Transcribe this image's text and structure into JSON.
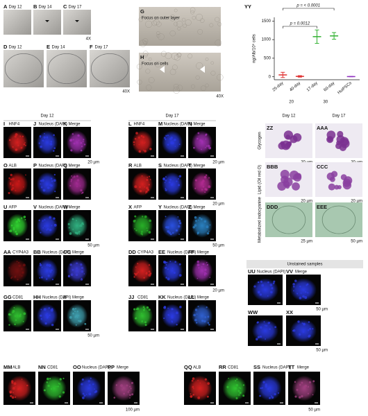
{
  "figure": {
    "brightfield": [
      {
        "letter": "A",
        "label": "Day 12"
      },
      {
        "letter": "B",
        "label": "Day 14"
      },
      {
        "letter": "C",
        "label": "Day 17"
      },
      {
        "letter": "D",
        "label": "Day 12"
      },
      {
        "letter": "E",
        "label": "Day 14"
      },
      {
        "letter": "F",
        "label": "Day 17"
      }
    ],
    "brightfield_mag": [
      "4X",
      "40X"
    ],
    "focus": [
      {
        "letter": "G",
        "label": "Focus on outer layer"
      },
      {
        "letter": "H",
        "label": "Focus on cells"
      }
    ],
    "focus_mag": "40X",
    "if_headers": [
      "Day 12",
      "Day 17"
    ],
    "if_rows": [
      [
        {
          "letter": "I",
          "label": "HNF4",
          "color": "#d42020"
        },
        {
          "letter": "J",
          "label": "Nucleus (DAPI)",
          "color": "#2a3ae0"
        },
        {
          "letter": "K",
          "label": "Merge",
          "color": "#a030b0",
          "scale": "20 µm"
        },
        {
          "letter": "L",
          "label": "HNF4",
          "color": "#d42020"
        },
        {
          "letter": "M",
          "label": "Nucleus (DAPI)",
          "color": "#2a3ae0"
        },
        {
          "letter": "N",
          "label": "Merge",
          "color": "#a030b0",
          "scale": "20 µm"
        }
      ],
      [
        {
          "letter": "O",
          "label": "ALB",
          "color": "#c81818"
        },
        {
          "letter": "P",
          "label": "Nucleus (DAPI)",
          "color": "#2a3ae0"
        },
        {
          "letter": "Q",
          "label": "Merge",
          "color": "#a02a90"
        },
        {
          "letter": "R",
          "label": "ALB",
          "color": "#d42020"
        },
        {
          "letter": "S",
          "label": "Nucleus (DAPI)",
          "color": "#2a3ae0"
        },
        {
          "letter": "T",
          "label": "Merge",
          "color": "#b02a90",
          "scale": "20 µm"
        }
      ],
      [
        {
          "letter": "U",
          "label": "AFP",
          "color": "#30d030"
        },
        {
          "letter": "V",
          "label": "Nucleus (DAPI)",
          "color": "#2a3ae0"
        },
        {
          "letter": "W",
          "label": "Merge",
          "color": "#30b080",
          "scale": "50 µm"
        },
        {
          "letter": "X",
          "label": "AFP",
          "color": "#28b028"
        },
        {
          "letter": "Y",
          "label": "Nucleus (DAPI)",
          "color": "#2a50e0"
        },
        {
          "letter": "Z",
          "label": "Merge",
          "color": "#2a80c0",
          "scale": "50 µm"
        }
      ],
      [
        {
          "letter": "AA",
          "label": "CYP4A3",
          "color": "#701010"
        },
        {
          "letter": "BB",
          "label": "Nucleus (DAPI)",
          "color": "#2a3ae0"
        },
        {
          "letter": "CC",
          "label": "Merge",
          "color": "#3a3ad0"
        },
        {
          "letter": "DD",
          "label": "CYP4A3",
          "color": "#d42020"
        },
        {
          "letter": "EE",
          "label": "Nucleus (DAPI)",
          "color": "#2a3ae0"
        },
        {
          "letter": "FF",
          "label": "Merge",
          "color": "#a030b0",
          "scale": "20 µm"
        }
      ],
      [
        {
          "letter": "GG",
          "label": "CD81",
          "color": "#30c030"
        },
        {
          "letter": "HH",
          "label": "Nucleus (DAPI)",
          "color": "#2a3ae0"
        },
        {
          "letter": "II",
          "label": "Merge",
          "color": "#40a0b0",
          "scale": "50 µm"
        },
        {
          "letter": "JJ",
          "label": "CD81",
          "color": "#30c030"
        },
        {
          "letter": "KK",
          "label": "Nucleus (DAPI)",
          "color": "#2a3ae0"
        },
        {
          "letter": "LL",
          "label": "Merge",
          "color": "#3060d0"
        }
      ]
    ],
    "histology": {
      "headers": [
        "Day 12",
        "Day 17"
      ],
      "rows": [
        {
          "stain": "Glycogen",
          "color": "#7a3090",
          "panels": [
            {
              "letter": "ZZ",
              "scale": "20 µm"
            },
            {
              "letter": "AAA",
              "scale": "20 µm"
            }
          ]
        },
        {
          "stain": "Lipid (Oil red O)",
          "color": "#8a40a0",
          "panels": [
            {
              "letter": "BBB",
              "scale": "20 µm"
            },
            {
              "letter": "CCC",
              "scale": "20 µm"
            }
          ]
        },
        {
          "stain": "Metabolized indocyanine",
          "color": "#a8c8b0",
          "panels": [
            {
              "letter": "DDD",
              "scale": "25 µm"
            },
            {
              "letter": "EEE",
              "scale": "50 µm"
            }
          ]
        }
      ]
    },
    "unstained": {
      "title": "Unstained samples",
      "panels": [
        {
          "letter": "UU",
          "label": "Nucleus (DAPI)",
          "color": "#2a3ae0"
        },
        {
          "letter": "VV",
          "label": "Merge",
          "color": "#2a3ae0",
          "scale": "50 µm"
        },
        {
          "letter": "WW",
          "color": "#2a3ae0"
        },
        {
          "letter": "XX",
          "color": "#2a3ae0",
          "scale": "50 µm"
        }
      ]
    },
    "bottom": [
      {
        "letter": "MM",
        "label": "ALB",
        "color": "#d42020"
      },
      {
        "letter": "NN",
        "label": "CD81",
        "color": "#30c030"
      },
      {
        "letter": "OO",
        "label": "Nucleus (DAPI)",
        "color": "#2a3ae0"
      },
      {
        "letter": "PP",
        "label": "Merge",
        "color": "#a04080",
        "scale": "100 µm"
      },
      {
        "letter": "QQ",
        "label": "ALB",
        "color": "#d42020"
      },
      {
        "letter": "RR",
        "label": "CD81",
        "color": "#30c030"
      },
      {
        "letter": "SS",
        "label": "Nucleus (DAPI)",
        "color": "#2a3ae0"
      },
      {
        "letter": "TT",
        "label": "Merge",
        "color": "#a04080",
        "scale": "50 µm"
      }
    ]
  },
  "chart_data": {
    "type": "dot",
    "title": "YY",
    "y_label": "ng/Alb/10⁶ cells",
    "categories": [
      "25-day",
      "40-day",
      "17-day",
      "60-day",
      "HuiPSCs"
    ],
    "values": [
      50,
      10,
      1080,
      1100,
      5
    ],
    "errors": [
      70,
      20,
      180,
      90,
      5
    ],
    "colors": [
      "#e03030",
      "#e03030",
      "#30b030",
      "#30b030",
      "#9030c0"
    ],
    "groups": [
      "20",
      "30"
    ],
    "annotations": [
      "p = 0.0012",
      "p = < 0.0001"
    ],
    "ylim": [
      -80,
      1600
    ],
    "yticks": [
      0,
      500,
      1000,
      1500
    ]
  }
}
